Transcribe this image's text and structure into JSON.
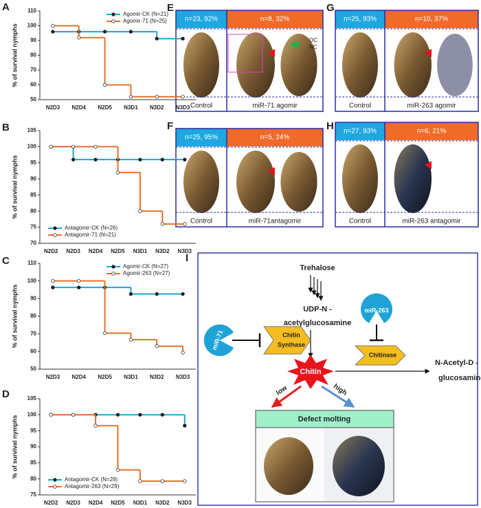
{
  "chart_data": [
    {
      "type": "step",
      "panel_label": "A",
      "y_label": "% of survival nymphs",
      "categories": [
        "N2D3",
        "N2D4",
        "N2D5",
        "N3D1",
        "N3D2",
        "N3D3"
      ],
      "series": [
        {
          "name": "Agomir-CK (N=21)",
          "color": "#1fa3d6",
          "values": [
            96,
            96,
            96,
            96,
            91.3,
            91.3
          ]
        },
        {
          "name": "Agomir-71 (N=25)",
          "color": "#e8702a",
          "values": [
            100,
            92,
            60,
            52,
            52,
            52
          ]
        }
      ],
      "ylim": [
        50,
        110
      ],
      "yticks": [
        50,
        60,
        70,
        80,
        90,
        100,
        110
      ],
      "legend": "upper right"
    },
    {
      "type": "step",
      "panel_label": "B",
      "y_label": "% of survival nymphs",
      "categories": [
        "N2D2",
        "N2D3",
        "N2D4",
        "N2D5",
        "N3D1",
        "N3D2",
        "N3D3"
      ],
      "series": [
        {
          "name": "Antagomir-CK (N=26)",
          "color": "#1fa3d6",
          "values": [
            100,
            96,
            96,
            96,
            96,
            96,
            96
          ]
        },
        {
          "name": "Antagomir-71 (N=21)",
          "color": "#e8702a",
          "values": [
            100,
            100,
            100,
            92,
            80,
            76,
            76
          ]
        }
      ],
      "ylim": [
        70,
        105
      ],
      "yticks": [
        70,
        75,
        80,
        85,
        90,
        95,
        100,
        105
      ],
      "legend": "lower left"
    },
    {
      "type": "step",
      "panel_label": "C",
      "y_label": "% of survival nymphs",
      "categories": [
        "N2D3",
        "N2D4",
        "N2D5",
        "N3D1",
        "N3D2",
        "N3D3"
      ],
      "series": [
        {
          "name": "Agomir-CK (N=27)",
          "color": "#1fa3d6",
          "values": [
            96.3,
            96.3,
            96.3,
            92.6,
            92.6,
            92.6
          ]
        },
        {
          "name": "Agomir-263 (N=27)",
          "color": "#e8702a",
          "values": [
            100,
            100,
            70.4,
            66.7,
            63,
            59.3
          ]
        }
      ],
      "ylim": [
        50,
        110
      ],
      "yticks": [
        50,
        60,
        70,
        80,
        90,
        100,
        110
      ],
      "legend": "upper right"
    },
    {
      "type": "step",
      "panel_label": "D",
      "y_label": "% of survival nymphs",
      "categories": [
        "N2D2",
        "N2D3",
        "N2D4",
        "N2D5",
        "N3D1",
        "N3D2",
        "N3D3"
      ],
      "series": [
        {
          "name": "Antagomir-CK (N=29)",
          "color": "#1fa3d6",
          "values": [
            100,
            100,
            100,
            100,
            100,
            100,
            96.6
          ]
        },
        {
          "name": "Antagomir-263 (N=29)",
          "color": "#e8702a",
          "values": [
            100,
            100,
            96.6,
            82.8,
            79.3,
            79.3,
            79.3
          ]
        }
      ],
      "ylim": [
        75,
        105
      ],
      "yticks": [
        75,
        80,
        85,
        90,
        95,
        100,
        105
      ],
      "legend": "lower left"
    }
  ],
  "photo_panels": [
    {
      "label": "E",
      "control_header": "n=23, 92%",
      "treated_header": "n=8, 32%",
      "control_caption": "Control",
      "treated_caption": "miR-71 agomir",
      "annotations": [
        "OC",
        "NC"
      ]
    },
    {
      "label": "F",
      "control_header": "n=25, 95%",
      "treated_header": "n=5, 24%",
      "control_caption": "Control",
      "treated_caption": "miR-71antagomir"
    },
    {
      "label": "G",
      "control_header": "n=25, 93%",
      "treated_header": "n=10, 37%",
      "control_caption": "Control",
      "treated_caption": "miR-263 agomir"
    },
    {
      "label": "H",
      "control_header": "n=27, 93%",
      "treated_header": "n=6, 21%",
      "control_caption": "Control",
      "treated_caption": "miR-263 antagomir"
    }
  ],
  "diagram": {
    "label": "I",
    "trehalose": "Trehalose",
    "udp_line1": "UDP-N -",
    "udp_line2": "acetylglucosamine",
    "mir71": "miR-71",
    "synthase_line1": "Chitin",
    "synthase_line2": "Synthase",
    "mir263": "miR-263",
    "chitinase": "Chitinase",
    "chitin": "Chitin",
    "product_line1": "N-Acetyl-D -",
    "product_line2": "glucosamine",
    "low": "low",
    "high": "high",
    "outcome": "Defect molting"
  }
}
